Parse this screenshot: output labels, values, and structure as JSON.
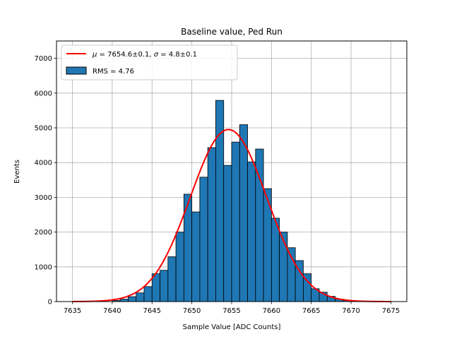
{
  "chart_data": {
    "type": "bar",
    "title": "Baseline value, Ped Run",
    "xlabel": "Sample Value [ADC Counts]",
    "ylabel": "Events",
    "xlim": [
      7633,
      7677
    ],
    "ylim": [
      0,
      7500
    ],
    "xticks": [
      7635,
      7640,
      7645,
      7650,
      7655,
      7660,
      7665,
      7670,
      7675
    ],
    "yticks": [
      0,
      1000,
      2000,
      3000,
      4000,
      5000,
      6000,
      7000
    ],
    "grid": true,
    "legend_position": "top-left",
    "bin_width": 1,
    "histogram": {
      "name": "RMS = 4.76",
      "color": "#1f77b4",
      "edge_color": "#000000",
      "bin_left_edges": [
        7640,
        7641,
        7642,
        7643,
        7644,
        7645,
        7646,
        7647,
        7648,
        7649,
        7650,
        7651,
        7652,
        7653,
        7654,
        7655,
        7656,
        7657,
        7658,
        7659,
        7660,
        7661,
        7662,
        7663,
        7664,
        7665,
        7666,
        7667,
        7668,
        7669,
        7670
      ],
      "counts": [
        30,
        70,
        140,
        250,
        430,
        800,
        900,
        1290,
        2000,
        3090,
        2580,
        3580,
        4430,
        5790,
        3920,
        4590,
        5090,
        4020,
        4390,
        3250,
        2400,
        2000,
        1550,
        1180,
        800,
        370,
        270,
        150,
        70,
        30,
        10
      ]
    },
    "fit": {
      "name_parts": [
        "μ",
        " = 7654.6±0.1, ",
        "σ",
        " = 4.8±0.1"
      ],
      "color": "#ff0000",
      "mu": 7654.6,
      "sigma": 4.8,
      "amplitude": 4950,
      "x_range": [
        7635,
        7675
      ]
    }
  }
}
